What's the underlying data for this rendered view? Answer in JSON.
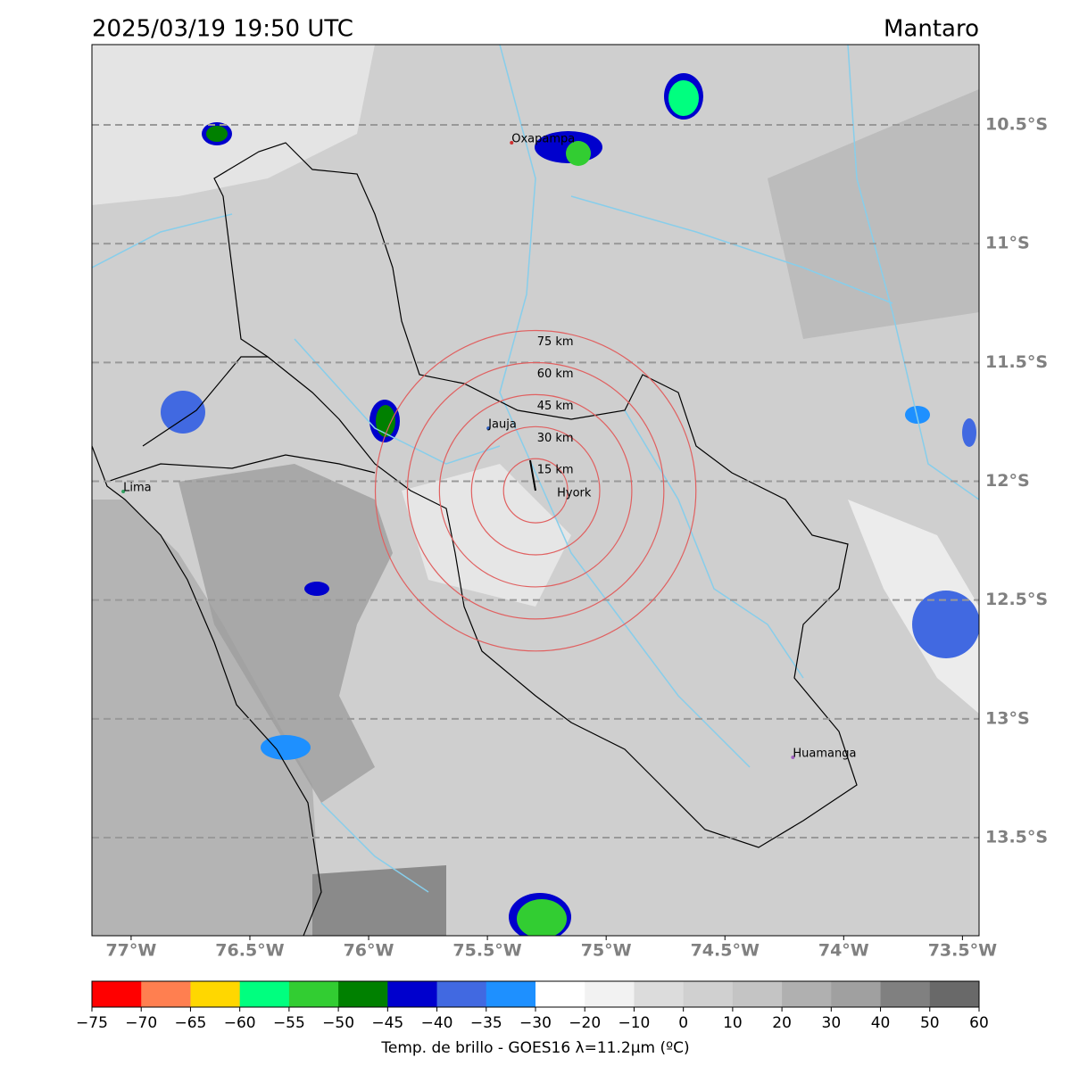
{
  "title": "2025/03/19 19:50 UTC",
  "region": "Mantaro",
  "map": {
    "xlim": [
      -77.165,
      -73.43
    ],
    "ylim": [
      -13.913,
      -10.162
    ],
    "xticks": [
      {
        "value": -77,
        "label": "77°W"
      },
      {
        "value": -76.5,
        "label": "76.5°W"
      },
      {
        "value": -76,
        "label": "76°W"
      },
      {
        "value": -75.5,
        "label": "75.5°W"
      },
      {
        "value": -75,
        "label": "75°W"
      },
      {
        "value": -74.5,
        "label": "74.5°W"
      },
      {
        "value": -74,
        "label": "74°W"
      },
      {
        "value": -73.5,
        "label": "73.5°W"
      }
    ],
    "yticks": [
      {
        "value": -10.5,
        "label": "10.5°S"
      },
      {
        "value": -11,
        "label": "11°S"
      },
      {
        "value": -11.5,
        "label": "11.5°S"
      },
      {
        "value": -12,
        "label": "12°S"
      },
      {
        "value": -12.5,
        "label": "12.5°S"
      },
      {
        "value": -13,
        "label": "13°S"
      },
      {
        "value": -13.5,
        "label": "13.5°S"
      }
    ],
    "cities": [
      {
        "name": "Oxapampa",
        "lon": -75.398,
        "lat": -10.575,
        "color": "#d03030"
      },
      {
        "name": "Jauja",
        "lon": -75.496,
        "lat": -11.777,
        "color": "#3060c0"
      },
      {
        "name": "Lima",
        "lon": -77.033,
        "lat": -12.043,
        "color": "#30a060"
      },
      {
        "name": "Huamanga",
        "lon": -74.214,
        "lat": -13.162,
        "color": "#a060c0"
      }
    ],
    "station": {
      "name": "Hyork",
      "lon": -75.297,
      "lat": -12.04
    },
    "rings": [
      {
        "value": 15,
        "label": "15 km"
      },
      {
        "value": 30,
        "label": "30 km"
      },
      {
        "value": 45,
        "label": "45 km"
      },
      {
        "value": 60,
        "label": "60 km"
      },
      {
        "value": 75,
        "label": "75 km"
      }
    ]
  },
  "colorbar": {
    "label": "Temp. de brillo - GOES16 λ=11.2μm (ºC)",
    "ticks": [
      {
        "value": -75,
        "label": "−75"
      },
      {
        "value": -70,
        "label": "−70"
      },
      {
        "value": -65,
        "label": "−65"
      },
      {
        "value": -60,
        "label": "−60"
      },
      {
        "value": -55,
        "label": "−55"
      },
      {
        "value": -50,
        "label": "−50"
      },
      {
        "value": -45,
        "label": "−45"
      },
      {
        "value": -40,
        "label": "−40"
      },
      {
        "value": -35,
        "label": "−35"
      },
      {
        "value": -30,
        "label": "−30"
      },
      {
        "value": -20,
        "label": "−20"
      },
      {
        "value": -10,
        "label": "−10"
      },
      0,
      10,
      20,
      30,
      40,
      50,
      60
    ],
    "colors": [
      "#ff0000",
      "#ff7f50",
      "#ffd700",
      "#00ff7f",
      "#32cd32",
      "#008000",
      "#0000cd",
      "#4169e1",
      "#1e90ff",
      "#ffffff",
      "#f2f2f2",
      "#dcdcdc",
      "#d0d0d0",
      "#c4c4c4",
      "#b0b0b0",
      "#a0a0a0",
      "#808080",
      "#696969",
      "#000000"
    ]
  }
}
